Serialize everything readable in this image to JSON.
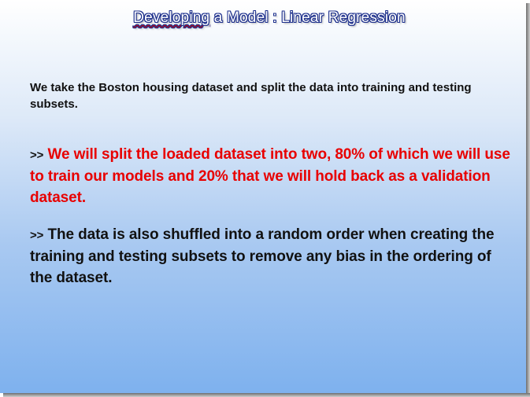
{
  "slide": {
    "title_part1": "Developing",
    "title_part2": " a Model : Linear Regression",
    "intro": "We take the Boston housing dataset and split the data into training and testing subsets.",
    "bullets": [
      {
        "marker": ">>",
        "text": " We will split the loaded dataset into two, 80% of which we will use to train our models and 20% that we will hold back as a validation dataset.",
        "color": "#e80000"
      },
      {
        "marker": ">>",
        "text": " The data is also shuffled into a random order when creating the training and testing subsets to remove any bias in the ordering of the dataset.",
        "color": "#111111"
      }
    ],
    "colors": {
      "title_outline": "#1c2f8c",
      "spellcheck_underline": "#d40000",
      "gradient_top": "#ffffff",
      "gradient_bottom": "#7eb1ee"
    }
  }
}
